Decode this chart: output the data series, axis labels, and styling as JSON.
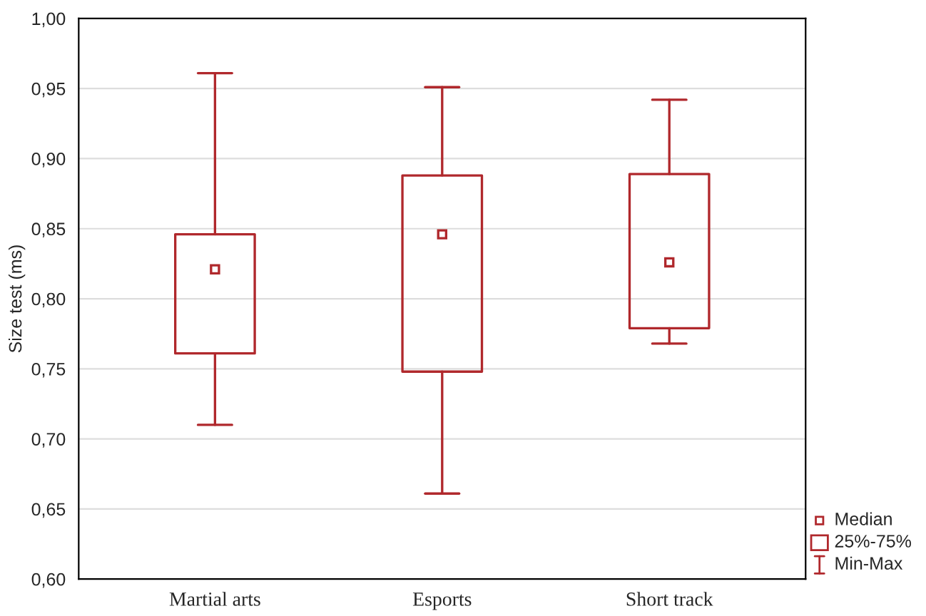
{
  "chart_data": {
    "type": "box",
    "ylabel": "Size test (ms)",
    "categories": [
      "Martial arts",
      "Esports",
      "Short track"
    ],
    "boxes": [
      {
        "low": 0.71,
        "q1": 0.761,
        "median": 0.821,
        "q3": 0.846,
        "high": 0.961
      },
      {
        "low": 0.661,
        "q1": 0.748,
        "median": 0.846,
        "q3": 0.888,
        "high": 0.951
      },
      {
        "low": 0.768,
        "q1": 0.779,
        "median": 0.826,
        "q3": 0.889,
        "high": 0.942
      }
    ],
    "color": "#b0282c",
    "ylim": [
      0.6,
      1.0
    ],
    "yticks": [
      {
        "value": 0.6,
        "label": "0,60"
      },
      {
        "value": 0.65,
        "label": "0,65"
      },
      {
        "value": 0.7,
        "label": "0,70"
      },
      {
        "value": 0.75,
        "label": "0,75"
      },
      {
        "value": 0.8,
        "label": "0,80"
      },
      {
        "value": 0.85,
        "label": "0,85"
      },
      {
        "value": 0.9,
        "label": "0,90"
      },
      {
        "value": 0.95,
        "label": "0,95"
      },
      {
        "value": 1.0,
        "label": "1,00"
      }
    ],
    "grid": "y",
    "annotations": [
      "Median",
      "25%-75%",
      "Min-Max"
    ]
  }
}
